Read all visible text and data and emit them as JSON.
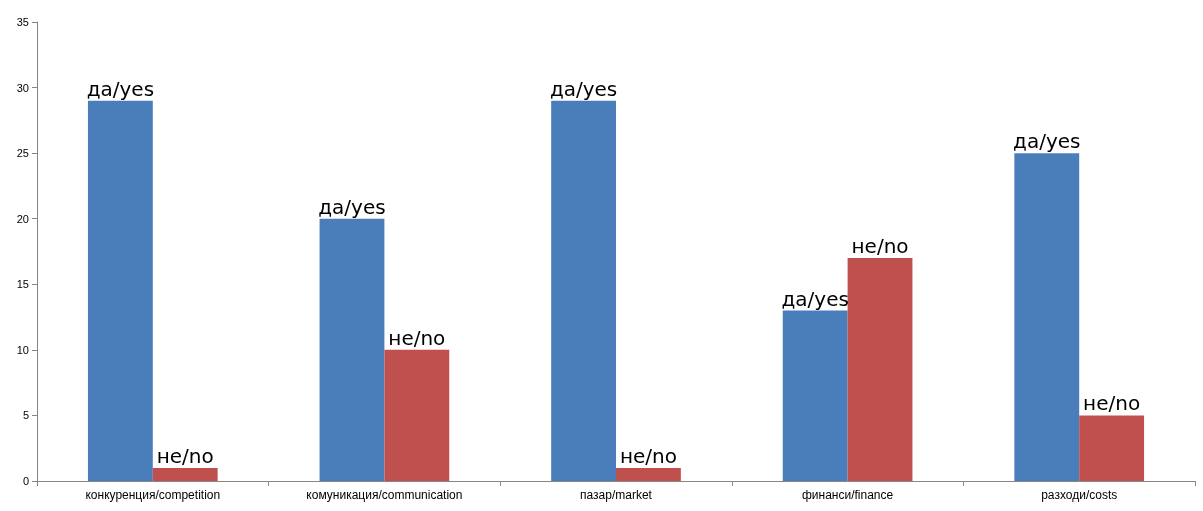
{
  "chart_data": {
    "type": "bar",
    "categories": [
      "конкуренция/competition",
      "комуникация/communication",
      "пазар/market",
      "финанси/finance",
      "разходи/costs"
    ],
    "series": [
      {
        "name": "да/yes",
        "color": "#4a7ebb",
        "values": [
          29,
          20,
          29,
          13,
          25
        ]
      },
      {
        "name": "не/no",
        "color": "#c0504d",
        "values": [
          1,
          10,
          1,
          17,
          5
        ]
      }
    ],
    "ylim": [
      0,
      35
    ],
    "yticks": [
      0,
      5,
      10,
      15,
      20,
      25,
      30,
      35
    ],
    "grid": false,
    "legend": false
  }
}
